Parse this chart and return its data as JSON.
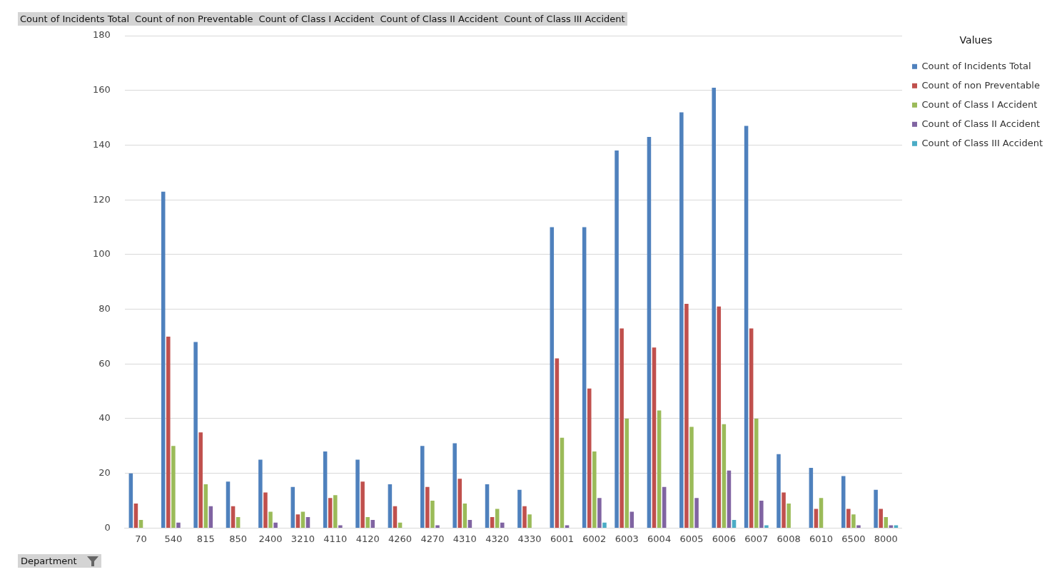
{
  "chart_data": {
    "type": "bar",
    "annotations": [
      "Count of Incidents Total",
      "Count of non Preventable",
      "Count of Class I Accident",
      "Count of Class II Accident",
      "Count of Class III Accident"
    ],
    "xlabel": "Department",
    "legend_title": "Values",
    "categories": [
      "70",
      "540",
      "815",
      "850",
      "2400",
      "3210",
      "4110",
      "4120",
      "4260",
      "4270",
      "4310",
      "4320",
      "4330",
      "6001",
      "6002",
      "6003",
      "6004",
      "6005",
      "6006",
      "6007",
      "6008",
      "6010",
      "6500",
      "8000"
    ],
    "series": [
      {
        "name": "Count of Incidents Total",
        "color": "#4f81bd",
        "values": [
          20,
          123,
          68,
          17,
          25,
          15,
          28,
          25,
          16,
          30,
          31,
          16,
          14,
          110,
          110,
          138,
          143,
          152,
          161,
          147,
          27,
          22,
          19,
          14
        ]
      },
      {
        "name": "Count of non Preventable",
        "color": "#c0504d",
        "values": [
          9,
          70,
          35,
          8,
          13,
          5,
          11,
          17,
          8,
          15,
          18,
          4,
          8,
          62,
          51,
          73,
          66,
          82,
          81,
          73,
          13,
          7,
          7,
          7
        ]
      },
      {
        "name": "Count of Class I Accident",
        "color": "#9bbb59",
        "values": [
          3,
          30,
          16,
          4,
          6,
          6,
          12,
          4,
          2,
          10,
          9,
          7,
          5,
          33,
          28,
          40,
          43,
          37,
          38,
          40,
          9,
          11,
          5,
          4
        ]
      },
      {
        "name": "Count of Class II Accident",
        "color": "#8064a2",
        "values": [
          null,
          2,
          8,
          null,
          2,
          4,
          1,
          3,
          null,
          1,
          3,
          2,
          null,
          1,
          11,
          6,
          15,
          11,
          21,
          10,
          null,
          null,
          1,
          1
        ]
      },
      {
        "name": "Count of Class III Accident",
        "color": "#4bacc6",
        "values": [
          null,
          null,
          null,
          null,
          null,
          null,
          null,
          null,
          null,
          null,
          null,
          null,
          null,
          null,
          2,
          null,
          null,
          null,
          3,
          1,
          null,
          null,
          null,
          1
        ]
      }
    ],
    "ylim": [
      0,
      180
    ],
    "yticks": [
      0,
      20,
      40,
      60,
      80,
      100,
      120,
      140,
      160,
      180
    ],
    "grid": "y",
    "legend": "top right"
  }
}
